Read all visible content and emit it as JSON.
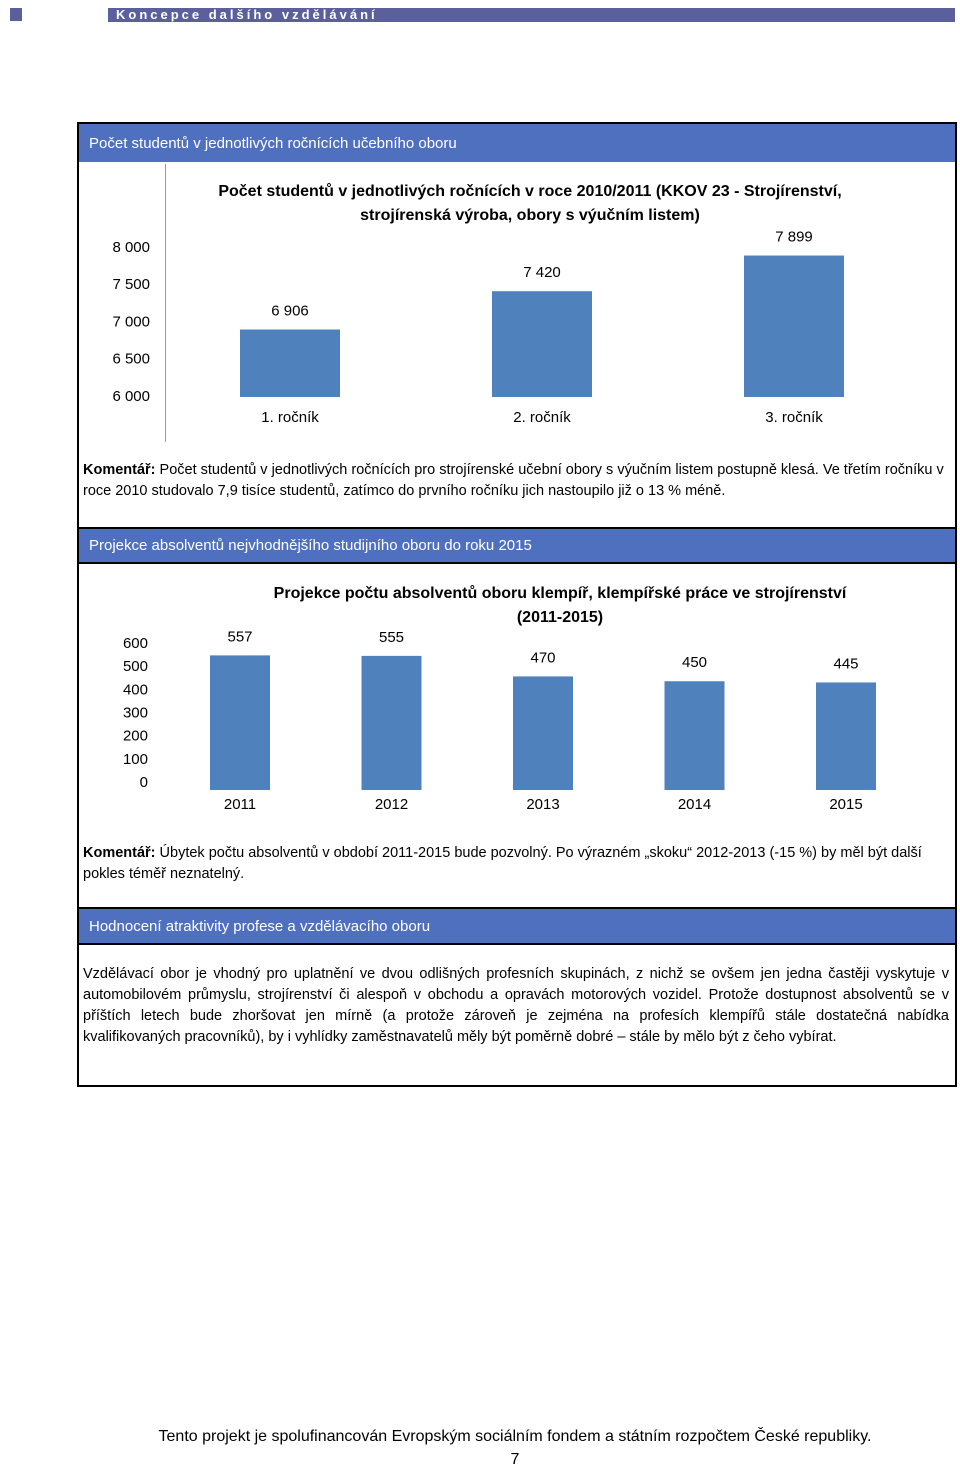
{
  "header": {
    "title": "Koncepce dalšího vzdělávání"
  },
  "sections": [
    {
      "heading": "Počet studentů v jednotlivých ročnících učebního oboru",
      "comment_label": "Komentář:",
      "comment": "Počet studentů v jednotlivých ročnících pro strojírenské učební obory s výučním listem postupně klesá. Ve třetím ročníku v roce 2010 studovalo 7,9 tisíce studentů, zatímco do prvního ročníku jich nastoupilo již o 13 % méně."
    },
    {
      "heading": "Projekce absolventů nejvhodnějšího studijního oboru do roku 2015",
      "comment_label": "Komentář:",
      "comment": "Úbytek počtu absolventů v období 2011-2015 bude pozvolný. Po výrazném „skoku“ 2012-2013 (-15 %) by měl být další pokles téměř neznatelný."
    },
    {
      "heading": "Hodnocení atraktivity profese a vzdělávacího oboru",
      "text": "Vzdělávací obor je vhodný pro uplatnění ve dvou odlišných profesních skupinách, z nichž se ovšem jen jedna častěji vyskytuje v automobilovém průmyslu, strojírenství či alespoň v obchodu a opravách motorových vozidel. Protože dostupnost absolventů se v příštích letech bude zhoršovat jen mírně (a protože zároveň je zejména na profesích klempířů stále dostatečná nabídka kvalifikovaných pracovníků), by i vyhlídky zaměstnavatelů měly být poměrně dobré – stále by mělo být z čeho vybírat."
    }
  ],
  "chart_data": [
    {
      "type": "bar",
      "title": "Počet studentů v jednotlivých ročnících v roce 2010/2011 (KKOV 23 - Strojírenství, strojírenská výroba, obory s výučním listem)",
      "categories": [
        "1. ročník",
        "2. ročník",
        "3. ročník"
      ],
      "values": [
        6906,
        7420,
        7899
      ],
      "value_labels": [
        "6 906",
        "7 420",
        "7 899"
      ],
      "color": "#4f81bd",
      "ylim": [
        6000,
        8000
      ],
      "yticks": [
        {
          "value": 6000,
          "label": "6 000"
        },
        {
          "value": 6500,
          "label": "6 500"
        },
        {
          "value": 7000,
          "label": "7 000"
        },
        {
          "value": 7500,
          "label": "7 500"
        },
        {
          "value": 8000,
          "label": "8 000"
        }
      ]
    },
    {
      "type": "bar",
      "title": "Projekce počtu absolventů oboru klempíř, klempířské práce ve strojírenství (2011-2015)",
      "categories": [
        "2011",
        "2012",
        "2013",
        "2014",
        "2015"
      ],
      "values": [
        557,
        555,
        470,
        450,
        445
      ],
      "color": "#4f81bd",
      "ylim": [
        0,
        600
      ],
      "yticks": [
        0,
        100,
        200,
        300,
        400,
        500,
        600
      ]
    }
  ],
  "footer": {
    "text": "Tento projekt je spolufinancován Evropským sociálním fondem a státním rozpočtem České republiky.",
    "page": "7"
  }
}
